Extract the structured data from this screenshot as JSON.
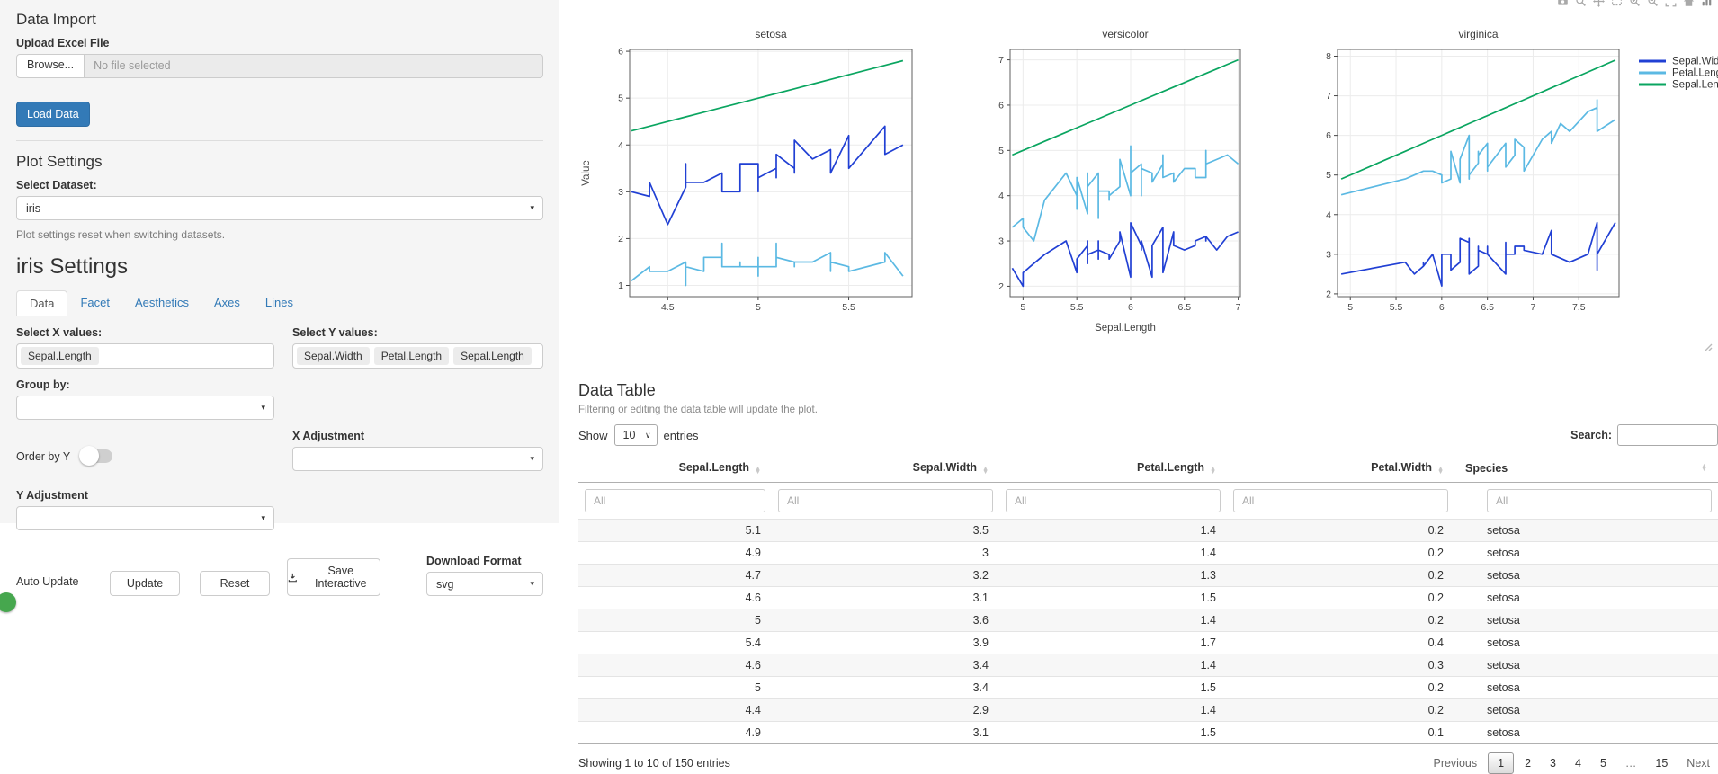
{
  "sidebar": {
    "data_import": {
      "title": "Data Import",
      "upload_label": "Upload Excel File",
      "browse_label": "Browse...",
      "file_placeholder": "No file selected",
      "load_button": "Load Data"
    },
    "plot_settings": {
      "title": "Plot Settings",
      "dataset_label": "Select Dataset:",
      "dataset_value": "iris",
      "help_text": "Plot settings reset when switching datasets."
    },
    "iris_settings": {
      "title": "iris Settings",
      "tabs": [
        {
          "label": "Data",
          "active": true
        },
        {
          "label": "Facet",
          "active": false
        },
        {
          "label": "Aesthetics",
          "active": false
        },
        {
          "label": "Axes",
          "active": false
        },
        {
          "label": "Lines",
          "active": false
        }
      ],
      "select_x_label": "Select X values:",
      "x_values": [
        "Sepal.Length"
      ],
      "select_y_label": "Select Y values:",
      "y_values": [
        "Sepal.Width",
        "Petal.Length",
        "Sepal.Length"
      ],
      "group_by_label": "Group by:",
      "order_by_label": "Order by Y",
      "order_by_on": false,
      "x_adjustment_label": "X Adjustment",
      "y_adjustment_label": "Y Adjustment",
      "auto_update_label": "Auto Update",
      "auto_update_on": true,
      "update_button": "Update",
      "reset_button": "Reset",
      "save_button": "Save Interactive",
      "download_format_label": "Download Format",
      "download_format_value": "svg"
    }
  },
  "plot": {
    "modebar": [
      "camera",
      "zoom",
      "pan",
      "box-select",
      "zoom-in",
      "zoom-out",
      "autoscale",
      "reset-axes",
      "plotly-logo"
    ]
  },
  "chart_data": {
    "type": "line",
    "xlabel": "Sepal.Length",
    "ylabel": "Value",
    "grid": true,
    "legend_position": "right",
    "series": [
      {
        "name": "Sepal.Width",
        "color": "#2140d4",
        "col": 1
      },
      {
        "name": "Petal.Length",
        "color": "#5bb9e3",
        "col": 2
      },
      {
        "name": "Sepal.Length",
        "color": "#0aa560",
        "col": 0
      }
    ],
    "row_format": [
      "Sepal.Length",
      "Sepal.Width",
      "Petal.Length"
    ],
    "facets": [
      {
        "name": "setosa",
        "x_range": [
          4.29,
          5.85
        ],
        "y_range": [
          0.76,
          6.04
        ],
        "x_ticks": [
          4.5,
          5,
          5.5
        ],
        "y_ticks": [
          1,
          2,
          3,
          4,
          5,
          6
        ],
        "rows": [
          [
            5.1,
            3.5,
            1.4
          ],
          [
            4.9,
            3.0,
            1.4
          ],
          [
            4.7,
            3.2,
            1.3
          ],
          [
            4.6,
            3.1,
            1.5
          ],
          [
            5.0,
            3.6,
            1.4
          ],
          [
            5.4,
            3.9,
            1.7
          ],
          [
            4.6,
            3.4,
            1.4
          ],
          [
            5.0,
            3.4,
            1.5
          ],
          [
            4.4,
            2.9,
            1.4
          ],
          [
            4.9,
            3.1,
            1.5
          ],
          [
            5.4,
            3.7,
            1.5
          ],
          [
            4.8,
            3.4,
            1.6
          ],
          [
            4.8,
            3.0,
            1.4
          ],
          [
            4.3,
            3.0,
            1.1
          ],
          [
            5.8,
            4.0,
            1.2
          ],
          [
            5.7,
            4.4,
            1.5
          ],
          [
            5.4,
            3.9,
            1.3
          ],
          [
            5.1,
            3.5,
            1.4
          ],
          [
            5.7,
            3.8,
            1.7
          ],
          [
            5.1,
            3.8,
            1.5
          ],
          [
            5.4,
            3.4,
            1.7
          ],
          [
            5.1,
            3.7,
            1.5
          ],
          [
            4.6,
            3.6,
            1.0
          ],
          [
            5.1,
            3.3,
            1.7
          ],
          [
            4.8,
            3.4,
            1.9
          ],
          [
            5.0,
            3.0,
            1.6
          ],
          [
            5.0,
            3.4,
            1.6
          ],
          [
            5.2,
            3.5,
            1.5
          ],
          [
            5.2,
            3.4,
            1.4
          ],
          [
            4.7,
            3.2,
            1.6
          ],
          [
            4.8,
            3.1,
            1.6
          ],
          [
            5.4,
            3.4,
            1.5
          ],
          [
            5.2,
            4.1,
            1.5
          ],
          [
            5.5,
            4.2,
            1.4
          ],
          [
            4.9,
            3.1,
            1.5
          ],
          [
            5.0,
            3.2,
            1.2
          ],
          [
            5.5,
            3.5,
            1.3
          ],
          [
            4.9,
            3.6,
            1.4
          ],
          [
            4.4,
            3.0,
            1.3
          ],
          [
            5.1,
            3.4,
            1.5
          ],
          [
            5.0,
            3.5,
            1.3
          ],
          [
            4.5,
            2.3,
            1.3
          ],
          [
            4.4,
            3.2,
            1.3
          ],
          [
            5.0,
            3.5,
            1.6
          ],
          [
            5.1,
            3.8,
            1.9
          ],
          [
            4.8,
            3.0,
            1.4
          ],
          [
            5.1,
            3.8,
            1.6
          ],
          [
            4.6,
            3.2,
            1.4
          ],
          [
            5.3,
            3.7,
            1.5
          ],
          [
            5.0,
            3.3,
            1.4
          ]
        ]
      },
      {
        "name": "versicolor",
        "x_range": [
          4.88,
          7.02
        ],
        "y_range": [
          1.77,
          7.23
        ],
        "x_ticks": [
          5,
          5.5,
          6,
          6.5,
          7
        ],
        "y_ticks": [
          2,
          3,
          4,
          5,
          6,
          7
        ],
        "rows": [
          [
            7.0,
            3.2,
            4.7
          ],
          [
            6.4,
            3.2,
            4.5
          ],
          [
            6.9,
            3.1,
            4.9
          ],
          [
            5.5,
            2.3,
            4.0
          ],
          [
            6.5,
            2.8,
            4.6
          ],
          [
            5.7,
            2.8,
            4.5
          ],
          [
            6.3,
            3.3,
            4.7
          ],
          [
            4.9,
            2.4,
            3.3
          ],
          [
            6.6,
            2.9,
            4.6
          ],
          [
            5.2,
            2.7,
            3.9
          ],
          [
            5.0,
            2.0,
            3.5
          ],
          [
            5.9,
            3.0,
            4.2
          ],
          [
            6.0,
            2.2,
            4.0
          ],
          [
            6.1,
            2.9,
            4.7
          ],
          [
            5.6,
            2.9,
            3.6
          ],
          [
            6.7,
            3.1,
            4.4
          ],
          [
            5.6,
            3.0,
            4.5
          ],
          [
            5.8,
            2.7,
            4.1
          ],
          [
            6.2,
            2.2,
            4.5
          ],
          [
            5.6,
            2.5,
            3.9
          ],
          [
            5.9,
            3.2,
            4.8
          ],
          [
            6.1,
            2.8,
            4.0
          ],
          [
            6.3,
            2.5,
            4.9
          ],
          [
            6.1,
            2.8,
            4.7
          ],
          [
            6.4,
            2.9,
            4.3
          ],
          [
            6.6,
            3.0,
            4.4
          ],
          [
            6.8,
            2.8,
            4.8
          ],
          [
            6.7,
            3.0,
            5.0
          ],
          [
            6.0,
            2.9,
            4.5
          ],
          [
            5.7,
            2.6,
            3.5
          ],
          [
            5.5,
            2.4,
            3.8
          ],
          [
            5.5,
            2.4,
            3.7
          ],
          [
            5.8,
            2.7,
            3.9
          ],
          [
            6.0,
            2.7,
            5.1
          ],
          [
            5.4,
            3.0,
            4.5
          ],
          [
            6.0,
            3.4,
            4.5
          ],
          [
            6.7,
            3.1,
            4.7
          ],
          [
            6.3,
            2.3,
            4.4
          ],
          [
            5.6,
            3.0,
            4.1
          ],
          [
            5.5,
            2.5,
            4.0
          ],
          [
            5.5,
            2.6,
            4.4
          ],
          [
            6.1,
            3.0,
            4.6
          ],
          [
            5.8,
            2.6,
            4.0
          ],
          [
            5.0,
            2.3,
            3.3
          ],
          [
            5.6,
            2.7,
            4.2
          ],
          [
            5.7,
            3.0,
            4.2
          ],
          [
            5.7,
            2.9,
            4.2
          ],
          [
            6.2,
            2.9,
            4.3
          ],
          [
            5.1,
            2.5,
            3.0
          ],
          [
            5.7,
            2.8,
            4.1
          ]
        ]
      },
      {
        "name": "virginica",
        "x_range": [
          4.86,
          7.94
        ],
        "y_range": [
          1.93,
          8.17
        ],
        "x_ticks": [
          5,
          5.5,
          6,
          6.5,
          7,
          7.5
        ],
        "y_ticks": [
          2,
          3,
          4,
          5,
          6,
          7,
          8
        ],
        "rows": [
          [
            6.3,
            3.3,
            6.0
          ],
          [
            5.8,
            2.7,
            5.1
          ],
          [
            7.1,
            3.0,
            5.9
          ],
          [
            6.3,
            2.9,
            5.6
          ],
          [
            6.5,
            3.0,
            5.8
          ],
          [
            7.6,
            3.0,
            6.6
          ],
          [
            4.9,
            2.5,
            4.5
          ],
          [
            7.3,
            2.9,
            6.3
          ],
          [
            6.7,
            2.5,
            5.8
          ],
          [
            7.2,
            3.6,
            6.1
          ],
          [
            6.5,
            3.2,
            5.1
          ],
          [
            6.4,
            2.7,
            5.3
          ],
          [
            6.8,
            3.0,
            5.5
          ],
          [
            5.7,
            2.5,
            5.0
          ],
          [
            5.8,
            2.8,
            5.1
          ],
          [
            6.4,
            3.2,
            5.3
          ],
          [
            6.5,
            3.0,
            5.5
          ],
          [
            7.7,
            3.8,
            6.7
          ],
          [
            7.7,
            2.6,
            6.9
          ],
          [
            6.0,
            2.2,
            5.0
          ],
          [
            6.9,
            3.2,
            5.7
          ],
          [
            5.6,
            2.8,
            4.9
          ],
          [
            7.7,
            2.8,
            6.7
          ],
          [
            6.3,
            2.7,
            4.9
          ],
          [
            6.7,
            3.3,
            5.7
          ],
          [
            7.2,
            3.2,
            6.0
          ],
          [
            6.2,
            2.8,
            4.8
          ],
          [
            6.1,
            3.0,
            4.9
          ],
          [
            6.4,
            2.8,
            5.6
          ],
          [
            7.2,
            3.0,
            5.8
          ],
          [
            7.4,
            2.8,
            6.1
          ],
          [
            7.9,
            3.8,
            6.4
          ],
          [
            6.4,
            2.8,
            5.6
          ],
          [
            6.3,
            2.8,
            5.1
          ],
          [
            6.1,
            2.6,
            5.6
          ],
          [
            7.7,
            3.0,
            6.1
          ],
          [
            6.3,
            3.4,
            5.6
          ],
          [
            6.4,
            3.1,
            5.5
          ],
          [
            6.0,
            3.0,
            4.8
          ],
          [
            6.9,
            3.1,
            5.4
          ],
          [
            6.7,
            3.1,
            5.6
          ],
          [
            6.9,
            3.1,
            5.1
          ],
          [
            5.8,
            2.7,
            5.1
          ],
          [
            6.8,
            3.2,
            5.9
          ],
          [
            6.7,
            3.3,
            5.7
          ],
          [
            6.7,
            3.0,
            5.2
          ],
          [
            6.3,
            2.5,
            5.0
          ],
          [
            6.5,
            3.0,
            5.2
          ],
          [
            6.2,
            3.4,
            5.4
          ],
          [
            5.9,
            3.0,
            5.1
          ]
        ]
      }
    ]
  },
  "table": {
    "title": "Data Table",
    "note": "Filtering or editing the data table will update the plot.",
    "show_label": "Show",
    "show_value": "10",
    "entries_label": "entries",
    "search_label": "Search:",
    "search_value": "",
    "filter_placeholder": "All",
    "columns": [
      "Sepal.Length",
      "Sepal.Width",
      "Petal.Length",
      "Petal.Width",
      "Species"
    ],
    "rows": [
      [
        "5.1",
        "3.5",
        "1.4",
        "0.2",
        "setosa"
      ],
      [
        "4.9",
        "3",
        "1.4",
        "0.2",
        "setosa"
      ],
      [
        "4.7",
        "3.2",
        "1.3",
        "0.2",
        "setosa"
      ],
      [
        "4.6",
        "3.1",
        "1.5",
        "0.2",
        "setosa"
      ],
      [
        "5",
        "3.6",
        "1.4",
        "0.2",
        "setosa"
      ],
      [
        "5.4",
        "3.9",
        "1.7",
        "0.4",
        "setosa"
      ],
      [
        "4.6",
        "3.4",
        "1.4",
        "0.3",
        "setosa"
      ],
      [
        "5",
        "3.4",
        "1.5",
        "0.2",
        "setosa"
      ],
      [
        "4.4",
        "2.9",
        "1.4",
        "0.2",
        "setosa"
      ],
      [
        "4.9",
        "3.1",
        "1.5",
        "0.1",
        "setosa"
      ]
    ],
    "info": "Showing 1 to 10 of 150 entries",
    "pagination": [
      "Previous",
      "1",
      "2",
      "3",
      "4",
      "5",
      "…",
      "15",
      "Next"
    ],
    "current_page": "1"
  }
}
